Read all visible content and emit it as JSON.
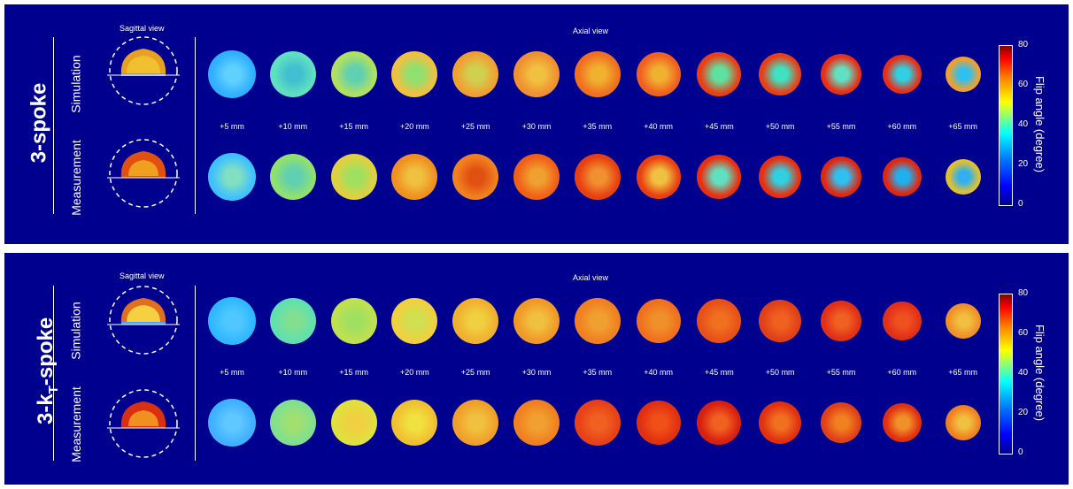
{
  "panels": [
    {
      "method_label": "3-spoke",
      "sagittal_title": "Sagittal view",
      "axial_title": "Axial view",
      "row_labels": [
        "Simulation",
        "Measurement"
      ],
      "slice_labels": [
        "+5 mm",
        "+10 mm",
        "+15 mm",
        "+20 mm",
        "+25 mm",
        "+30 mm",
        "+35 mm",
        "+40 mm",
        "+45 mm",
        "+50 mm",
        "+55 mm",
        "+60 mm",
        "+65 mm"
      ],
      "colorbar": {
        "title": "Flip angle (degree)",
        "ticks": [
          "80",
          "60",
          "40",
          "20",
          "0"
        ]
      }
    },
    {
      "method_label_main": "3-k",
      "method_label_sub": "T",
      "method_label_tail": "-spoke",
      "sagittal_title": "Sagittal view",
      "axial_title": "Axial view",
      "row_labels": [
        "Simulation",
        "Measurement"
      ],
      "slice_labels": [
        "+5 mm",
        "+10 mm",
        "+15 mm",
        "+20 mm",
        "+25 mm",
        "+30 mm",
        "+35 mm",
        "+40 mm",
        "+45 mm",
        "+50 mm",
        "+55 mm",
        "+60 mm",
        "+65 mm"
      ],
      "colorbar": {
        "title": "Flip angle (degree)",
        "ticks": [
          "80",
          "60",
          "40",
          "20",
          "0"
        ]
      }
    }
  ],
  "colors": {
    "background": "#00008f",
    "frame": "#ffffff"
  }
}
